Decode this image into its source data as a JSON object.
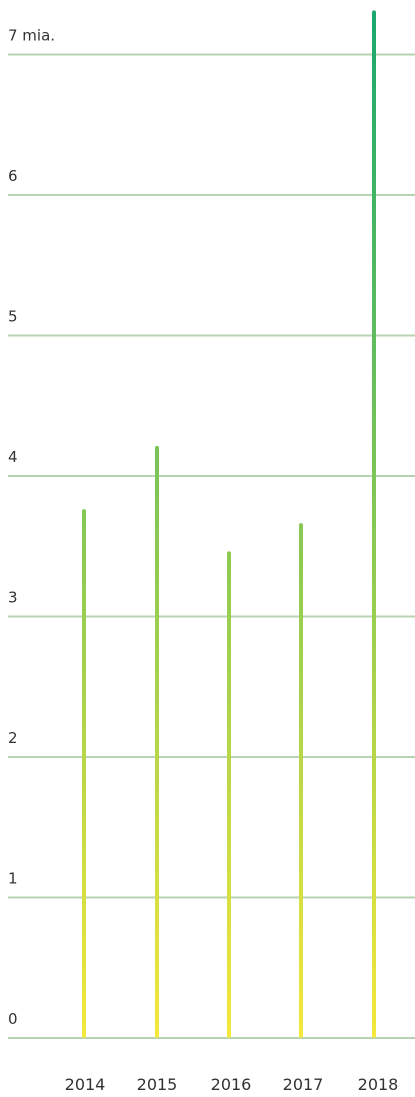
{
  "chart_data": {
    "type": "bar",
    "title": "",
    "xlabel": "",
    "ylabel": "",
    "categories": [
      "2014",
      "2015",
      "2016",
      "2017",
      "2018"
    ],
    "values": [
      3.75,
      4.2,
      3.45,
      3.65,
      7.3
    ],
    "ylim": [
      0,
      7
    ],
    "yticks": [
      0,
      1,
      2,
      3,
      4,
      5,
      6,
      7
    ],
    "ytick_labels": [
      "0",
      "1",
      "2",
      "3",
      "4",
      "5",
      "6",
      "7 mia."
    ],
    "grid": true,
    "colors": {
      "bar_top": "#1aa86e",
      "bar_bottom": "#f4e83a",
      "grid": "#b8d3b3"
    }
  }
}
